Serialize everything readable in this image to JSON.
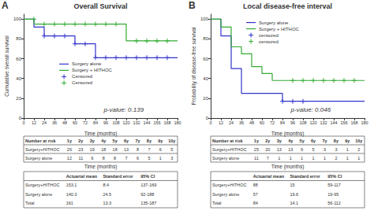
{
  "chart_data": [
    {
      "type": "line",
      "panel_label": "A",
      "title": "Overall Survival",
      "xlabel": "Time (months)",
      "ylabel": "Cumulative overall survival",
      "annotations": [
        "p-value: 0.139"
      ],
      "xlim": [
        0,
        180
      ],
      "ylim": [
        0,
        105
      ],
      "xticks": [
        0,
        12,
        24,
        36,
        48,
        60,
        72,
        84,
        96,
        108,
        120,
        132,
        144,
        156,
        168,
        180
      ],
      "yticks": [
        0,
        20,
        40,
        60,
        80,
        100
      ],
      "grid": false,
      "legend": "center left",
      "series": [
        {
          "name": "Surgery alone",
          "type": "step",
          "color": "#3333cc",
          "x": [
            0,
            12,
            12,
            24,
            24,
            60,
            60,
            84,
            84,
            120,
            120,
            132,
            132,
            180
          ],
          "values": [
            100,
            100,
            92,
            92,
            83,
            83,
            75,
            75,
            61,
            61,
            61,
            61,
            61,
            61
          ]
        },
        {
          "name": "Surgery + HITHOC",
          "type": "step",
          "color": "#33aa33",
          "x": [
            0,
            12,
            12,
            96,
            96,
            120,
            120,
            132,
            132,
            180
          ],
          "values": [
            100,
            100,
            95,
            95,
            95,
            95,
            78,
            78,
            78,
            78
          ]
        },
        {
          "name": "Censored",
          "type": "scatter",
          "marker": "plus",
          "color": "#3333cc",
          "x": [
            24,
            36,
            48,
            60,
            72,
            84,
            96,
            108,
            120,
            132,
            144,
            156,
            168
          ],
          "values": [
            83,
            83,
            83,
            75,
            75,
            61,
            61,
            61,
            61,
            61,
            61,
            61,
            61
          ]
        },
        {
          "name": "Censored",
          "type": "scatter",
          "marker": "plus",
          "color": "#33aa33",
          "x": [
            12,
            24,
            36,
            48,
            60,
            72,
            84,
            96,
            108,
            132,
            144,
            156,
            168
          ],
          "values": [
            100,
            95,
            95,
            95,
            95,
            95,
            95,
            95,
            95,
            78,
            78,
            78,
            78
          ]
        }
      ],
      "risk_table": {
        "title": "Number at risk",
        "xlabel": "Time (months)",
        "columns": [
          "1y",
          "2y",
          "3y",
          "4y",
          "5y",
          "6y",
          "7y",
          "8y",
          "9y",
          "10y"
        ],
        "rows": [
          {
            "label": "Surgery+HITHOC",
            "values": [
              26,
              23,
              19,
              18,
              18,
              13,
              8,
              7,
              6,
              5
            ]
          },
          {
            "label": "Surgery alone",
            "values": [
              12,
              11,
              9,
              8,
              8,
              7,
              6,
              5,
              1,
              3
            ]
          }
        ]
      },
      "stats_table": {
        "columns": [
          "Actuarial mean",
          "Standard error",
          "95% CI"
        ],
        "rows": [
          {
            "label": "Surgery+HITHOC",
            "mean": 153.1,
            "se": 8.4,
            "ci": "137-169"
          },
          {
            "label": "Surgery alone",
            "mean": 140.3,
            "se": 24.5,
            "ci": "92-188"
          },
          {
            "label": "Total",
            "mean": 161,
            "se": 13.3,
            "ci": "135-187"
          }
        ]
      }
    },
    {
      "type": "line",
      "panel_label": "B",
      "title": "Local disease-free interval",
      "xlabel": "Time (months)",
      "ylabel": "Probability of disease-free survival",
      "annotations": [
        "p-value: 0.046"
      ],
      "xlim": [
        0,
        180
      ],
      "ylim": [
        0,
        105
      ],
      "xticks": [
        0,
        12,
        24,
        36,
        48,
        60,
        72,
        84,
        96,
        108,
        120,
        132,
        144,
        156,
        168,
        180
      ],
      "yticks": [
        0,
        20,
        40,
        60,
        80,
        100
      ],
      "grid": false,
      "legend": "upper left",
      "series": [
        {
          "name": "Surgery alone",
          "type": "step",
          "color": "#3333cc",
          "x": [
            0,
            12,
            12,
            24,
            24,
            36,
            36,
            60,
            60,
            84,
            84,
            96,
            96,
            180
          ],
          "values": [
            100,
            100,
            83,
            83,
            50,
            50,
            25,
            25,
            25,
            25,
            17,
            17,
            17,
            17
          ]
        },
        {
          "name": "Surgery + HITHOC",
          "type": "step",
          "color": "#33aa33",
          "x": [
            0,
            12,
            12,
            24,
            24,
            36,
            36,
            48,
            48,
            60,
            60,
            72,
            72,
            84,
            84,
            96,
            96,
            180
          ],
          "values": [
            100,
            100,
            92,
            92,
            72,
            72,
            65,
            65,
            52,
            52,
            45,
            45,
            38,
            38,
            38,
            38,
            38,
            38
          ]
        },
        {
          "name": "censored",
          "type": "scatter",
          "marker": "plus",
          "color": "#3333cc",
          "x": [
            84,
            96,
            108
          ],
          "values": [
            17,
            17,
            17
          ]
        },
        {
          "name": "censored",
          "type": "scatter",
          "marker": "plus",
          "color": "#33aa33",
          "x": [
            96,
            108,
            120,
            132,
            144,
            156,
            168
          ],
          "values": [
            38,
            38,
            38,
            38,
            38,
            38,
            38
          ]
        }
      ],
      "risk_table": {
        "title": "Number at risk",
        "xlabel": "Time (months)",
        "columns": [
          "1y",
          "2y",
          "3y",
          "4y",
          "5y",
          "6y",
          "7y",
          "8y",
          "9y",
          "10y"
        ],
        "rows": [
          {
            "label": "Surgery+HITHOC",
            "values": [
              25,
              20,
              13,
              13,
              9,
              5,
              3,
              3,
              1,
              2
            ]
          },
          {
            "label": "Surgery alone",
            "values": [
              11,
              7,
              1,
              1,
              1,
              1,
              1,
              2,
              1,
              1
            ]
          }
        ]
      },
      "stats_table": {
        "columns": [
          "Actuarial mean",
          "Standard error",
          "95% CI"
        ],
        "rows": [
          {
            "label": "Surgery+HITHOC",
            "mean": 88,
            "se": 15,
            "ci": "59-117"
          },
          {
            "label": "Surgery alone",
            "mean": 57,
            "se": 19.6,
            "ci": "19-95"
          },
          {
            "label": "Total",
            "mean": 84,
            "se": 14.1,
            "ci": "56-112"
          }
        ]
      }
    }
  ]
}
